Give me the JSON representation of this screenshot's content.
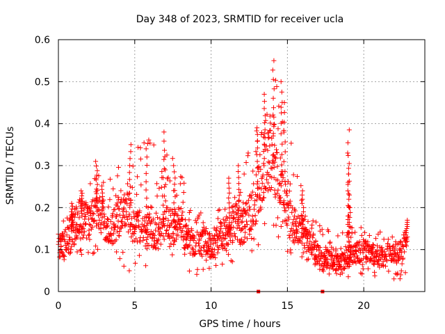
{
  "chart_data": {
    "type": "scatter",
    "title": "Day 348 of 2023, SRMTID for receiver ucla",
    "xlabel": "GPS time / hours",
    "ylabel": "SRMTID / TECUs",
    "xlim": [
      0,
      24
    ],
    "ylim": [
      0,
      0.6
    ],
    "grid": true,
    "marker": "plus",
    "color": "#ff0000",
    "x_ticks": [
      0,
      5,
      10,
      15,
      20
    ],
    "x_tick_labels": [
      "0",
      "5",
      "10",
      "15",
      "20"
    ],
    "y_ticks": [
      0,
      0.1,
      0.2,
      0.3,
      0.4,
      0.5,
      0.6
    ],
    "y_tick_labels": [
      "0",
      "0.1",
      "0.2",
      "0.3",
      "0.4",
      "0.5",
      "0.6"
    ],
    "series": [
      {
        "name": "SRMTID",
        "trend": [
          {
            "x": 0.0,
            "y": 0.11
          },
          {
            "x": 0.5,
            "y": 0.12
          },
          {
            "x": 1.0,
            "y": 0.15
          },
          {
            "x": 1.5,
            "y": 0.18
          },
          {
            "x": 2.0,
            "y": 0.16
          },
          {
            "x": 2.5,
            "y": 0.2
          },
          {
            "x": 3.0,
            "y": 0.17
          },
          {
            "x": 3.5,
            "y": 0.15
          },
          {
            "x": 4.0,
            "y": 0.18
          },
          {
            "x": 4.5,
            "y": 0.2
          },
          {
            "x": 5.0,
            "y": 0.16
          },
          {
            "x": 5.5,
            "y": 0.15
          },
          {
            "x": 6.0,
            "y": 0.14
          },
          {
            "x": 6.5,
            "y": 0.13
          },
          {
            "x": 7.0,
            "y": 0.17
          },
          {
            "x": 7.5,
            "y": 0.15
          },
          {
            "x": 8.0,
            "y": 0.16
          },
          {
            "x": 8.5,
            "y": 0.12
          },
          {
            "x": 9.0,
            "y": 0.11
          },
          {
            "x": 9.5,
            "y": 0.12
          },
          {
            "x": 10.0,
            "y": 0.1
          },
          {
            "x": 10.5,
            "y": 0.13
          },
          {
            "x": 11.0,
            "y": 0.14
          },
          {
            "x": 11.5,
            "y": 0.17
          },
          {
            "x": 12.0,
            "y": 0.15
          },
          {
            "x": 12.5,
            "y": 0.18
          },
          {
            "x": 13.0,
            "y": 0.23
          },
          {
            "x": 13.5,
            "y": 0.3
          },
          {
            "x": 14.0,
            "y": 0.34
          },
          {
            "x": 14.5,
            "y": 0.27
          },
          {
            "x": 15.0,
            "y": 0.18
          },
          {
            "x": 15.5,
            "y": 0.16
          },
          {
            "x": 16.0,
            "y": 0.14
          },
          {
            "x": 16.5,
            "y": 0.11
          },
          {
            "x": 17.0,
            "y": 0.09
          },
          {
            "x": 17.5,
            "y": 0.08
          },
          {
            "x": 18.0,
            "y": 0.07
          },
          {
            "x": 18.5,
            "y": 0.07
          },
          {
            "x": 19.0,
            "y": 0.08
          },
          {
            "x": 19.5,
            "y": 0.09
          },
          {
            "x": 20.0,
            "y": 0.1
          },
          {
            "x": 20.5,
            "y": 0.09
          },
          {
            "x": 21.0,
            "y": 0.08
          },
          {
            "x": 21.5,
            "y": 0.09
          },
          {
            "x": 22.0,
            "y": 0.09
          },
          {
            "x": 22.5,
            "y": 0.1
          },
          {
            "x": 22.8,
            "y": 0.12
          }
        ],
        "peaks": [
          {
            "x": 0.9,
            "y": 0.21
          },
          {
            "x": 1.5,
            "y": 0.24
          },
          {
            "x": 2.5,
            "y": 0.31
          },
          {
            "x": 2.9,
            "y": 0.26
          },
          {
            "x": 4.7,
            "y": 0.35
          },
          {
            "x": 5.8,
            "y": 0.34
          },
          {
            "x": 6.9,
            "y": 0.38
          },
          {
            "x": 7.6,
            "y": 0.3
          },
          {
            "x": 11.2,
            "y": 0.27
          },
          {
            "x": 11.8,
            "y": 0.3
          },
          {
            "x": 13.0,
            "y": 0.39
          },
          {
            "x": 13.5,
            "y": 0.47
          },
          {
            "x": 14.1,
            "y": 0.55
          },
          {
            "x": 14.6,
            "y": 0.5
          },
          {
            "x": 14.8,
            "y": 0.45
          },
          {
            "x": 16.0,
            "y": 0.24
          },
          {
            "x": 19.0,
            "y": 0.385
          },
          {
            "x": 19.0,
            "y": 0.33
          },
          {
            "x": 19.0,
            "y": 0.28
          },
          {
            "x": 19.1,
            "y": 0.2
          },
          {
            "x": 22.8,
            "y": 0.17
          }
        ],
        "range": [
          {
            "x": 0.0,
            "ymin": 0.07,
            "ymax": 0.15
          },
          {
            "x": 2.0,
            "ymin": 0.08,
            "ymax": 0.26
          },
          {
            "x": 5.0,
            "ymin": 0.04,
            "ymax": 0.35
          },
          {
            "x": 7.0,
            "ymin": 0.08,
            "ymax": 0.38
          },
          {
            "x": 9.0,
            "ymin": 0.04,
            "ymax": 0.2
          },
          {
            "x": 10.0,
            "ymin": 0.05,
            "ymax": 0.17
          },
          {
            "x": 12.0,
            "ymin": 0.08,
            "ymax": 0.27
          },
          {
            "x": 14.0,
            "ymin": 0.1,
            "ymax": 0.55
          },
          {
            "x": 16.0,
            "ymin": 0.08,
            "ymax": 0.24
          },
          {
            "x": 18.0,
            "ymin": 0.03,
            "ymax": 0.13
          },
          {
            "x": 20.0,
            "ymin": 0.04,
            "ymax": 0.17
          },
          {
            "x": 22.0,
            "ymin": 0.03,
            "ymax": 0.15
          }
        ],
        "zero_values": [
          {
            "x": 13.1,
            "y": 0
          },
          {
            "x": 17.3,
            "y": 0
          }
        ]
      }
    ]
  }
}
